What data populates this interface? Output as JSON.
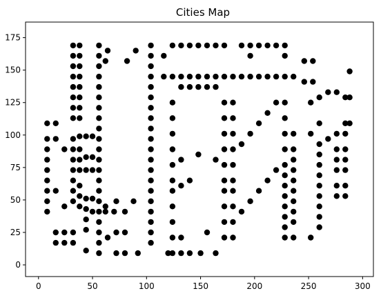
{
  "chart_data": {
    "type": "scatter",
    "title": "Cities Map",
    "xlabel": "",
    "ylabel": "",
    "xlim": [
      -12,
      310
    ],
    "ylim": [
      -9,
      187
    ],
    "xticks": [
      0,
      50,
      100,
      150,
      200,
      250,
      300
    ],
    "yticks": [
      0,
      25,
      50,
      75,
      100,
      125,
      150,
      175
    ],
    "grid": false,
    "marker_color": "#000000",
    "points": [
      [
        8,
        109
      ],
      [
        8,
        97
      ],
      [
        8,
        89
      ],
      [
        8,
        81
      ],
      [
        8,
        73
      ],
      [
        8,
        65
      ],
      [
        8,
        57
      ],
      [
        8,
        49
      ],
      [
        8,
        41
      ],
      [
        16,
        109
      ],
      [
        16,
        97
      ],
      [
        16,
        57
      ],
      [
        16,
        25
      ],
      [
        16,
        17
      ],
      [
        24,
        89
      ],
      [
        24,
        45
      ],
      [
        24,
        25
      ],
      [
        24,
        17
      ],
      [
        32,
        169
      ],
      [
        32,
        161
      ],
      [
        32,
        153
      ],
      [
        32,
        145
      ],
      [
        32,
        137
      ],
      [
        32,
        129
      ],
      [
        32,
        121
      ],
      [
        32,
        113
      ],
      [
        32,
        97
      ],
      [
        32,
        89
      ],
      [
        32,
        81
      ],
      [
        32,
        73
      ],
      [
        32,
        65
      ],
      [
        32,
        57
      ],
      [
        32,
        49
      ],
      [
        32,
        25
      ],
      [
        32,
        17
      ],
      [
        38,
        169
      ],
      [
        38,
        161
      ],
      [
        38,
        153
      ],
      [
        38,
        145
      ],
      [
        38,
        137
      ],
      [
        38,
        129
      ],
      [
        38,
        121
      ],
      [
        38,
        113
      ],
      [
        38,
        99
      ],
      [
        38,
        89
      ],
      [
        38,
        81
      ],
      [
        38,
        73
      ],
      [
        38,
        61
      ],
      [
        38,
        53
      ],
      [
        38,
        45
      ],
      [
        44,
        99
      ],
      [
        44,
        83
      ],
      [
        44,
        73
      ],
      [
        44,
        51
      ],
      [
        44,
        43
      ],
      [
        44,
        35
      ],
      [
        44,
        27
      ],
      [
        44,
        11
      ],
      [
        50,
        99
      ],
      [
        50,
        83
      ],
      [
        50,
        73
      ],
      [
        50,
        51
      ],
      [
        50,
        41
      ],
      [
        56,
        169
      ],
      [
        56,
        161
      ],
      [
        56,
        153
      ],
      [
        56,
        145
      ],
      [
        56,
        137
      ],
      [
        56,
        129
      ],
      [
        56,
        121
      ],
      [
        56,
        113
      ],
      [
        56,
        105
      ],
      [
        56,
        97
      ],
      [
        56,
        89
      ],
      [
        56,
        81
      ],
      [
        56,
        73
      ],
      [
        56,
        65
      ],
      [
        56,
        57
      ],
      [
        56,
        49
      ],
      [
        56,
        41
      ],
      [
        56,
        33
      ],
      [
        56,
        25
      ],
      [
        56,
        17
      ],
      [
        56,
        9
      ],
      [
        62,
        157
      ],
      [
        62,
        45
      ],
      [
        62,
        41
      ],
      [
        64,
        165
      ],
      [
        64,
        21
      ],
      [
        70,
        41
      ],
      [
        72,
        49
      ],
      [
        72,
        25
      ],
      [
        72,
        9
      ],
      [
        80,
        41
      ],
      [
        80,
        25
      ],
      [
        80,
        9
      ],
      [
        82,
        157
      ],
      [
        88,
        49
      ],
      [
        90,
        165
      ],
      [
        92,
        9
      ],
      [
        104,
        169
      ],
      [
        104,
        161
      ],
      [
        104,
        153
      ],
      [
        104,
        145
      ],
      [
        104,
        137
      ],
      [
        104,
        129
      ],
      [
        104,
        121
      ],
      [
        104,
        113
      ],
      [
        104,
        105
      ],
      [
        104,
        97
      ],
      [
        104,
        89
      ],
      [
        104,
        81
      ],
      [
        104,
        73
      ],
      [
        104,
        65
      ],
      [
        104,
        57
      ],
      [
        104,
        49
      ],
      [
        104,
        41
      ],
      [
        104,
        33
      ],
      [
        104,
        25
      ],
      [
        104,
        17
      ],
      [
        116,
        161
      ],
      [
        116,
        145
      ],
      [
        120,
        9
      ],
      [
        124,
        169
      ],
      [
        124,
        145
      ],
      [
        124,
        125
      ],
      [
        124,
        113
      ],
      [
        124,
        101
      ],
      [
        124,
        89
      ],
      [
        124,
        77
      ],
      [
        124,
        65
      ],
      [
        124,
        57
      ],
      [
        124,
        45
      ],
      [
        124,
        33
      ],
      [
        124,
        21
      ],
      [
        124,
        9
      ],
      [
        132,
        169
      ],
      [
        132,
        145
      ],
      [
        132,
        137
      ],
      [
        132,
        81
      ],
      [
        132,
        61
      ],
      [
        132,
        21
      ],
      [
        132,
        9
      ],
      [
        140,
        169
      ],
      [
        140,
        145
      ],
      [
        140,
        137
      ],
      [
        140,
        65
      ],
      [
        140,
        9
      ],
      [
        148,
        169
      ],
      [
        148,
        145
      ],
      [
        148,
        137
      ],
      [
        148,
        85
      ],
      [
        150,
        9
      ],
      [
        156,
        169
      ],
      [
        156,
        145
      ],
      [
        156,
        137
      ],
      [
        156,
        25
      ],
      [
        164,
        169
      ],
      [
        164,
        145
      ],
      [
        164,
        137
      ],
      [
        164,
        81
      ],
      [
        164,
        9
      ],
      [
        172,
        169
      ],
      [
        172,
        145
      ],
      [
        172,
        125
      ],
      [
        172,
        113
      ],
      [
        172,
        101
      ],
      [
        172,
        89
      ],
      [
        172,
        77
      ],
      [
        172,
        65
      ],
      [
        172,
        57
      ],
      [
        172,
        45
      ],
      [
        172,
        33
      ],
      [
        172,
        21
      ],
      [
        180,
        145
      ],
      [
        180,
        125
      ],
      [
        180,
        113
      ],
      [
        180,
        101
      ],
      [
        180,
        89
      ],
      [
        180,
        77
      ],
      [
        180,
        65
      ],
      [
        180,
        57
      ],
      [
        180,
        45
      ],
      [
        180,
        33
      ],
      [
        180,
        21
      ],
      [
        188,
        169
      ],
      [
        188,
        145
      ],
      [
        188,
        93
      ],
      [
        188,
        41
      ],
      [
        196,
        169
      ],
      [
        196,
        161
      ],
      [
        196,
        145
      ],
      [
        196,
        101
      ],
      [
        196,
        49
      ],
      [
        204,
        169
      ],
      [
        204,
        145
      ],
      [
        204,
        109
      ],
      [
        204,
        57
      ],
      [
        212,
        169
      ],
      [
        212,
        145
      ],
      [
        212,
        117
      ],
      [
        212,
        65
      ],
      [
        220,
        169
      ],
      [
        220,
        145
      ],
      [
        220,
        125
      ],
      [
        220,
        73
      ],
      [
        228,
        169
      ],
      [
        228,
        161
      ],
      [
        228,
        145
      ],
      [
        228,
        125
      ],
      [
        228,
        113
      ],
      [
        228,
        101
      ],
      [
        228,
        89
      ],
      [
        228,
        77
      ],
      [
        228,
        69
      ],
      [
        228,
        61
      ],
      [
        228,
        53
      ],
      [
        228,
        45
      ],
      [
        228,
        37
      ],
      [
        228,
        29
      ],
      [
        228,
        21
      ],
      [
        236,
        145
      ],
      [
        236,
        101
      ],
      [
        236,
        89
      ],
      [
        236,
        81
      ],
      [
        236,
        73
      ],
      [
        236,
        65
      ],
      [
        236,
        57
      ],
      [
        236,
        49
      ],
      [
        236,
        41
      ],
      [
        236,
        33
      ],
      [
        236,
        21
      ],
      [
        246,
        157
      ],
      [
        246,
        141
      ],
      [
        252,
        125
      ],
      [
        252,
        101
      ],
      [
        252,
        21
      ],
      [
        254,
        157
      ],
      [
        254,
        141
      ],
      [
        260,
        129
      ],
      [
        260,
        109
      ],
      [
        260,
        93
      ],
      [
        260,
        85
      ],
      [
        260,
        77
      ],
      [
        260,
        69
      ],
      [
        260,
        61
      ],
      [
        260,
        53
      ],
      [
        260,
        45
      ],
      [
        260,
        37
      ],
      [
        260,
        29
      ],
      [
        268,
        133
      ],
      [
        268,
        97
      ],
      [
        276,
        133
      ],
      [
        276,
        101
      ],
      [
        276,
        89
      ],
      [
        276,
        81
      ],
      [
        276,
        73
      ],
      [
        276,
        61
      ],
      [
        276,
        53
      ],
      [
        284,
        129
      ],
      [
        284,
        109
      ],
      [
        284,
        101
      ],
      [
        284,
        89
      ],
      [
        284,
        81
      ],
      [
        284,
        73
      ],
      [
        284,
        61
      ],
      [
        284,
        53
      ],
      [
        288,
        149
      ],
      [
        288,
        129
      ],
      [
        288,
        109
      ]
    ]
  }
}
